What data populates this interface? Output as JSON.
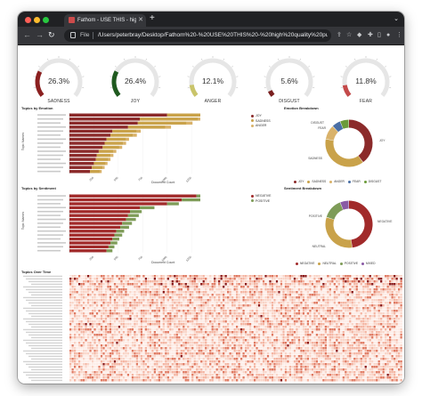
{
  "browser": {
    "tab_title": "Fathom - USE THIS - high qua",
    "url_scheme": "File",
    "url": "/Users/peterbray/Desktop/Fathom%20-%20USE%20THIS%20-%20high%20quality%20pu..."
  },
  "colors": {
    "negative": "#a12a2a",
    "positive": "#7e9c58",
    "joy": "#8b2a2a",
    "sadness": "#c9a24a",
    "anger": "#d9b26a",
    "disgust": "#b43a2a",
    "fear": "#c0392b"
  },
  "chart_data": [
    {
      "type": "gauge",
      "gauges": [
        {
          "label": "SADNESS",
          "value_text": "26.3%",
          "value": 26.3,
          "color": "#8b2020"
        },
        {
          "label": "JOY",
          "value_text": "26.4%",
          "value": 26.4,
          "color": "#1f5a1f"
        },
        {
          "label": "ANGER",
          "value_text": "12.1%",
          "value": 12.1,
          "color": "#c9c46a"
        },
        {
          "label": "DISGUST",
          "value_text": "5.6%",
          "value": 5.6,
          "color": "#7a1f1f"
        },
        {
          "label": "FEAR",
          "value_text": "11.8%",
          "value": 11.8,
          "color": "#c44a4a"
        }
      ]
    },
    {
      "type": "bar",
      "orientation": "horizontal",
      "stacked": true,
      "title": "Topics by Emotion",
      "xlabel": "Document Count",
      "ylabel": "Topic Names",
      "xlim": [
        0,
        1750
      ],
      "x_ticks": [
        "250",
        "500",
        "750",
        "1000",
        "1250",
        "1500",
        "1750"
      ],
      "categories": [
        "t1",
        "t2",
        "t3",
        "t4",
        "t5",
        "t6",
        "t7",
        "t8",
        "t9",
        "t10",
        "t11",
        "t12",
        "t13",
        "t14",
        "t15"
      ],
      "series": [
        {
          "name": "JOY",
          "color": "#8b2a2a",
          "values": [
            1000,
            720,
            700,
            600,
            440,
            420,
            380,
            360,
            340,
            300,
            280,
            270,
            250,
            230,
            210
          ]
        },
        {
          "name": "SADNESS",
          "color": "#c9a24a",
          "values": [
            600,
            600,
            500,
            380,
            250,
            230,
            200,
            190,
            170,
            150,
            140,
            130,
            120,
            110,
            100
          ]
        },
        {
          "name": "ANGER",
          "color": "#d9b26a",
          "values": [
            120,
            80,
            60,
            60,
            40,
            40,
            30,
            30,
            30,
            30,
            30,
            20,
            20,
            20,
            20
          ]
        }
      ],
      "legend_position": "right"
    },
    {
      "type": "pie",
      "donut": true,
      "title": "Emotion Breakdown",
      "slice_labels": [
        "DISGUST",
        "FEAR",
        "JOY",
        "SADNESS"
      ],
      "slices": [
        {
          "name": "JOY",
          "value": 40,
          "color": "#8b2a2a"
        },
        {
          "name": "SADNESS",
          "value": 38,
          "color": "#c9a24a"
        },
        {
          "name": "ANGER",
          "value": 10,
          "color": "#d9b26a"
        },
        {
          "name": "FEAR",
          "value": 6,
          "color": "#4a6fa5"
        },
        {
          "name": "DISGUST",
          "value": 6,
          "color": "#6b9b3a"
        }
      ],
      "legend_position": "bottom"
    },
    {
      "type": "bar",
      "orientation": "horizontal",
      "stacked": true,
      "title": "Topics by Sentiment",
      "xlabel": "Document Count",
      "ylabel": "Topic Names",
      "xlim": [
        0,
        1750
      ],
      "x_ticks": [
        "250",
        "500",
        "750",
        "1000",
        "1250",
        "1500",
        "1750"
      ],
      "categories": [
        "t1",
        "t2",
        "t3",
        "t4",
        "t5",
        "t6",
        "t7",
        "t8",
        "t9",
        "t10",
        "t11",
        "t12",
        "t13",
        "t14",
        "t15"
      ],
      "series": [
        {
          "name": "NEGATIVE",
          "color": "#a12a2a",
          "values": [
            1300,
            1150,
            1000,
            720,
            620,
            600,
            580,
            540,
            520,
            480,
            460,
            440,
            420,
            400,
            380
          ]
        },
        {
          "name": "POSITIVE",
          "color": "#7e9c58",
          "values": [
            350,
            250,
            120,
            150,
            120,
            110,
            100,
            100,
            90,
            80,
            80,
            70,
            70,
            60,
            60
          ]
        }
      ],
      "legend_position": "right"
    },
    {
      "type": "pie",
      "donut": true,
      "title": "Sentiment Breakdown",
      "slice_labels": [
        "POSITIVE",
        "NEGATIVE",
        "NEUTRAL"
      ],
      "slices": [
        {
          "name": "NEGATIVE",
          "value": 48,
          "color": "#a12a2a"
        },
        {
          "name": "NEUTRAL",
          "value": 32,
          "color": "#c9a24a"
        },
        {
          "name": "POSITIVE",
          "value": 14,
          "color": "#7e9c58"
        },
        {
          "name": "MIXED",
          "value": 6,
          "color": "#8a5aa5"
        }
      ],
      "legend_position": "bottom"
    },
    {
      "type": "heatmap",
      "title": "Topics Over Time",
      "rows": 40,
      "columns": 150,
      "color_low": "#fdece6",
      "color_high": "#8b1a1a"
    }
  ]
}
